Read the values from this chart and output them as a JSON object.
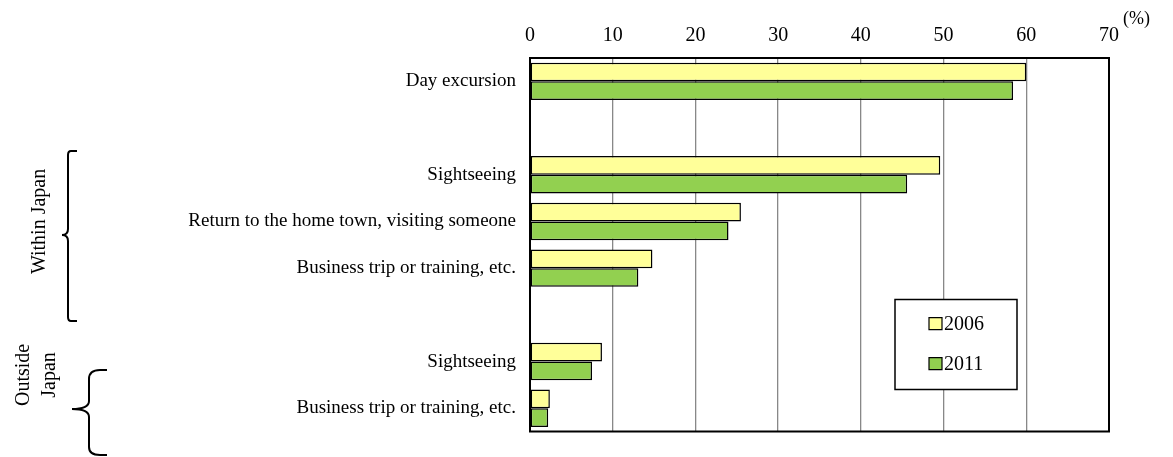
{
  "chart_data": {
    "type": "bar",
    "orientation": "horizontal",
    "xlabel": "(%)",
    "categories": [
      "Day excursion",
      null,
      "Sightseeing",
      "Return to the home town, visiting someone",
      "Business trip or training, etc.",
      null,
      "Sightseeing",
      "Business trip or training, etc."
    ],
    "series": [
      {
        "name": "2006",
        "color": "#ffff99",
        "values": [
          60.0,
          null,
          49.6,
          25.5,
          14.8,
          null,
          8.7,
          2.4
        ]
      },
      {
        "name": "2011",
        "color": "#92d050",
        "values": [
          58.4,
          null,
          45.6,
          24.0,
          13.1,
          null,
          7.5,
          2.2
        ]
      }
    ],
    "xlim": [
      0,
      70
    ],
    "xticks": [
      0,
      10,
      20,
      30,
      40,
      50,
      60,
      70
    ],
    "grid": "x",
    "legend": "bottom right",
    "annotations": [
      "Within Japan",
      "Outside Japan"
    ]
  }
}
